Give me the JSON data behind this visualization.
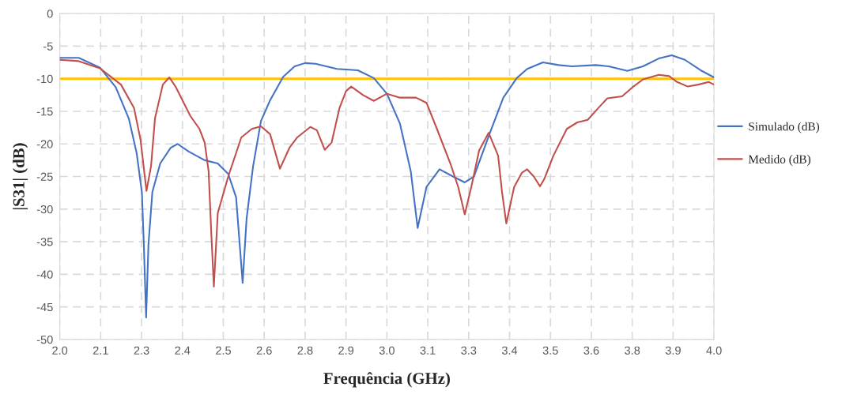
{
  "chart_data": {
    "type": "line",
    "xlabel": "Frequência (GHz)",
    "ylabel": "|S31| (dB)",
    "xlim": [
      2.0,
      4.0
    ],
    "ylim": [
      -50,
      0
    ],
    "xticks": [
      {
        "value": 2.0,
        "label": "2.0"
      },
      {
        "value": 2.125,
        "label": "2.1"
      },
      {
        "value": 2.25,
        "label": "2.3"
      },
      {
        "value": 2.375,
        "label": "2.4"
      },
      {
        "value": 2.5,
        "label": "2.5"
      },
      {
        "value": 2.625,
        "label": "2.6"
      },
      {
        "value": 2.75,
        "label": "2.8"
      },
      {
        "value": 2.875,
        "label": "2.9"
      },
      {
        "value": 3.0,
        "label": "3.0"
      },
      {
        "value": 3.125,
        "label": "3.1"
      },
      {
        "value": 3.25,
        "label": "3.3"
      },
      {
        "value": 3.375,
        "label": "3.4"
      },
      {
        "value": 3.5,
        "label": "3.5"
      },
      {
        "value": 3.625,
        "label": "3.6"
      },
      {
        "value": 3.75,
        "label": "3.8"
      },
      {
        "value": 3.875,
        "label": "3.9"
      },
      {
        "value": 4.0,
        "label": "4.0"
      }
    ],
    "yticks": [
      0,
      -5,
      -10,
      -15,
      -20,
      -25,
      -30,
      -35,
      -40,
      -45,
      -50
    ],
    "grid": true,
    "legend": "right",
    "marker": "none",
    "line_style": "solid",
    "ref_lines": [
      {
        "axis": "y",
        "value": -10,
        "color": "#ffc000"
      }
    ],
    "series": [
      {
        "name": "Simulado (dB)",
        "color": "#4472c4",
        "x": [
          2.0,
          2.058,
          2.123,
          2.171,
          2.211,
          2.235,
          2.251,
          2.257,
          2.264,
          2.271,
          2.283,
          2.307,
          2.339,
          2.36,
          2.395,
          2.443,
          2.483,
          2.515,
          2.539,
          2.559,
          2.571,
          2.591,
          2.615,
          2.643,
          2.683,
          2.718,
          2.75,
          2.782,
          2.847,
          2.911,
          2.96,
          3.0,
          3.04,
          3.073,
          3.094,
          3.121,
          3.161,
          3.202,
          3.238,
          3.266,
          3.315,
          3.356,
          3.397,
          3.429,
          3.477,
          3.525,
          3.566,
          3.638,
          3.678,
          3.735,
          3.783,
          3.831,
          3.871,
          3.911,
          3.959,
          4.0
        ],
        "values": [
          -6.8,
          -6.8,
          -8.3,
          -11.3,
          -16.1,
          -21.4,
          -27.4,
          -35.5,
          -46.6,
          -35.5,
          -27.4,
          -23,
          -20.6,
          -20,
          -21.2,
          -22.5,
          -23,
          -24.6,
          -28.2,
          -41.3,
          -31.5,
          -23.4,
          -16.5,
          -13.3,
          -9.7,
          -8.1,
          -7.6,
          -7.7,
          -8.5,
          -8.7,
          -9.9,
          -12.3,
          -16.9,
          -24.2,
          -32.9,
          -26.6,
          -23.9,
          -25,
          -25.9,
          -25,
          -18.3,
          -12.9,
          -9.9,
          -8.5,
          -7.5,
          -7.9,
          -8.1,
          -7.9,
          -8.1,
          -8.8,
          -8.1,
          -6.9,
          -6.4,
          -7.1,
          -8.7,
          -9.8
        ]
      },
      {
        "name": "Medido (dB)",
        "color": "#c0504d",
        "x": [
          2.0,
          2.058,
          2.123,
          2.187,
          2.227,
          2.247,
          2.265,
          2.279,
          2.291,
          2.315,
          2.335,
          2.355,
          2.379,
          2.399,
          2.427,
          2.443,
          2.455,
          2.463,
          2.471,
          2.483,
          2.515,
          2.555,
          2.587,
          2.615,
          2.643,
          2.673,
          2.702,
          2.726,
          2.766,
          2.786,
          2.81,
          2.831,
          2.855,
          2.875,
          2.891,
          2.927,
          2.96,
          3.0,
          3.04,
          3.089,
          3.121,
          3.153,
          3.194,
          3.218,
          3.238,
          3.258,
          3.282,
          3.311,
          3.34,
          3.352,
          3.365,
          3.389,
          3.413,
          3.429,
          3.449,
          3.468,
          3.481,
          3.509,
          3.55,
          3.582,
          3.614,
          3.646,
          3.674,
          3.719,
          3.751,
          3.783,
          3.831,
          3.863,
          3.887,
          3.92,
          3.952,
          3.984,
          4.0
        ],
        "values": [
          -7.1,
          -7.3,
          -8.4,
          -10.9,
          -14.5,
          -19.4,
          -27.2,
          -23.4,
          -16.1,
          -10.9,
          -9.8,
          -11.3,
          -13.7,
          -15.7,
          -17.7,
          -19.8,
          -24.2,
          -33.5,
          -41.9,
          -30.6,
          -25,
          -19,
          -17.7,
          -17.3,
          -18.5,
          -23.8,
          -20.6,
          -19,
          -17.4,
          -17.9,
          -20.9,
          -19.8,
          -14.5,
          -11.9,
          -11.2,
          -12.5,
          -13.4,
          -12.3,
          -12.9,
          -12.9,
          -13.7,
          -17.7,
          -23,
          -26.6,
          -30.8,
          -26.6,
          -21,
          -18.3,
          -21.8,
          -27.4,
          -32.2,
          -26.6,
          -24.4,
          -23.9,
          -25,
          -26.5,
          -25.4,
          -21.8,
          -17.7,
          -16.7,
          -16.3,
          -14.5,
          -13,
          -12.7,
          -11.3,
          -10.1,
          -9.4,
          -9.6,
          -10.5,
          -11.2,
          -10.9,
          -10.5,
          -10.9
        ]
      }
    ]
  }
}
